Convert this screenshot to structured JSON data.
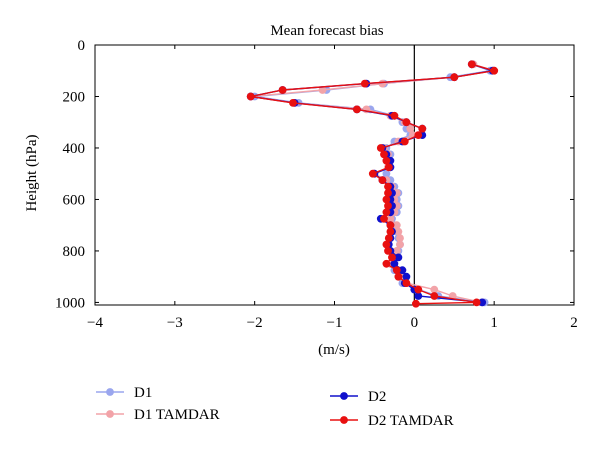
{
  "chart_data": {
    "type": "line",
    "title": "Mean forecast bias",
    "xlabel": "(m/s)",
    "ylabel": "Height (hPa)",
    "xlim": [
      -4,
      2
    ],
    "ylim": [
      1010,
      0
    ],
    "y_inverted": true,
    "xticks": [
      -4,
      -3,
      -2,
      -1,
      0,
      1,
      2
    ],
    "yticks": [
      0,
      200,
      400,
      600,
      800,
      1000
    ],
    "grid": false,
    "zero_line": 0,
    "legend_placement": "bottom",
    "series": [
      {
        "name": "D1",
        "color": "#9aa6ee",
        "points": [
          [
            0.72,
            75
          ],
          [
            0.95,
            100
          ],
          [
            0.45,
            125
          ],
          [
            -0.38,
            150
          ],
          [
            -1.1,
            175
          ],
          [
            -2.0,
            200
          ],
          [
            -1.45,
            225
          ],
          [
            -0.55,
            250
          ],
          [
            -0.25,
            275
          ],
          [
            -0.15,
            300
          ],
          [
            -0.1,
            325
          ],
          [
            -0.05,
            350
          ],
          [
            -0.25,
            375
          ],
          [
            -0.35,
            400
          ],
          [
            -0.3,
            425
          ],
          [
            -0.32,
            450
          ],
          [
            -0.3,
            475
          ],
          [
            -0.35,
            500
          ],
          [
            -0.3,
            525
          ],
          [
            -0.25,
            550
          ],
          [
            -0.2,
            575
          ],
          [
            -0.22,
            600
          ],
          [
            -0.2,
            625
          ],
          [
            -0.22,
            650
          ],
          [
            -0.28,
            675
          ],
          [
            -0.25,
            700
          ],
          [
            -0.22,
            725
          ],
          [
            -0.2,
            750
          ],
          [
            -0.18,
            775
          ],
          [
            -0.2,
            800
          ],
          [
            -0.25,
            825
          ],
          [
            -0.3,
            850
          ],
          [
            -0.25,
            875
          ],
          [
            -0.2,
            900
          ],
          [
            -0.15,
            925
          ],
          [
            0.05,
            950
          ],
          [
            0.3,
            975
          ],
          [
            0.88,
            1000
          ]
        ]
      },
      {
        "name": "D1 TAMDAR",
        "color": "#f2a3a8",
        "points": [
          [
            0.74,
            75
          ],
          [
            1.0,
            100
          ],
          [
            0.5,
            125
          ],
          [
            -0.4,
            150
          ],
          [
            -1.15,
            175
          ],
          [
            -2.05,
            200
          ],
          [
            -1.5,
            225
          ],
          [
            -0.6,
            250
          ],
          [
            -0.3,
            275
          ],
          [
            -0.12,
            300
          ],
          [
            -0.05,
            325
          ],
          [
            -0.02,
            350
          ],
          [
            -0.2,
            375
          ],
          [
            -0.38,
            400
          ],
          [
            -0.33,
            425
          ],
          [
            -0.35,
            450
          ],
          [
            -0.33,
            475
          ],
          [
            -0.5,
            500
          ],
          [
            -0.35,
            525
          ],
          [
            -0.28,
            550
          ],
          [
            -0.22,
            575
          ],
          [
            -0.25,
            600
          ],
          [
            -0.22,
            625
          ],
          [
            -0.25,
            650
          ],
          [
            -0.3,
            675
          ],
          [
            -0.22,
            700
          ],
          [
            -0.2,
            725
          ],
          [
            -0.18,
            750
          ],
          [
            -0.18,
            775
          ],
          [
            -0.22,
            800
          ],
          [
            -0.28,
            825
          ],
          [
            -0.3,
            850
          ],
          [
            -0.2,
            875
          ],
          [
            -0.15,
            900
          ],
          [
            -0.1,
            925
          ],
          [
            0.25,
            950
          ],
          [
            0.48,
            975
          ],
          [
            0.85,
            1000
          ]
        ]
      },
      {
        "name": "D2",
        "color": "#1010cc",
        "points": [
          [
            0.72,
            75
          ],
          [
            0.98,
            100
          ],
          [
            0.5,
            125
          ],
          [
            -0.6,
            150
          ],
          [
            -1.65,
            175
          ],
          [
            -2.05,
            200
          ],
          [
            -1.5,
            225
          ],
          [
            -0.72,
            250
          ],
          [
            -0.28,
            275
          ],
          [
            -0.1,
            300
          ],
          [
            0.1,
            325
          ],
          [
            0.1,
            350
          ],
          [
            -0.15,
            375
          ],
          [
            -0.4,
            400
          ],
          [
            -0.35,
            425
          ],
          [
            -0.3,
            450
          ],
          [
            -0.3,
            475
          ],
          [
            -0.5,
            500
          ],
          [
            -0.4,
            525
          ],
          [
            -0.3,
            550
          ],
          [
            -0.28,
            575
          ],
          [
            -0.3,
            600
          ],
          [
            -0.28,
            625
          ],
          [
            -0.3,
            650
          ],
          [
            -0.42,
            675
          ],
          [
            -0.3,
            700
          ],
          [
            -0.28,
            725
          ],
          [
            -0.3,
            750
          ],
          [
            -0.32,
            775
          ],
          [
            -0.3,
            800
          ],
          [
            -0.2,
            825
          ],
          [
            -0.25,
            850
          ],
          [
            -0.15,
            875
          ],
          [
            -0.1,
            900
          ],
          [
            -0.12,
            925
          ],
          [
            0.0,
            950
          ],
          [
            0.05,
            975
          ],
          [
            0.85,
            1000
          ]
        ]
      },
      {
        "name": "D2 TAMDAR",
        "color": "#e81010",
        "points": [
          [
            0.72,
            75
          ],
          [
            1.0,
            100
          ],
          [
            0.5,
            125
          ],
          [
            -0.62,
            150
          ],
          [
            -1.65,
            175
          ],
          [
            -2.05,
            200
          ],
          [
            -1.52,
            225
          ],
          [
            -0.72,
            250
          ],
          [
            -0.25,
            275
          ],
          [
            -0.1,
            300
          ],
          [
            0.1,
            325
          ],
          [
            0.05,
            350
          ],
          [
            -0.12,
            375
          ],
          [
            -0.42,
            400
          ],
          [
            -0.38,
            425
          ],
          [
            -0.35,
            450
          ],
          [
            -0.32,
            475
          ],
          [
            -0.52,
            500
          ],
          [
            -0.4,
            525
          ],
          [
            -0.33,
            550
          ],
          [
            -0.33,
            575
          ],
          [
            -0.35,
            600
          ],
          [
            -0.33,
            625
          ],
          [
            -0.35,
            650
          ],
          [
            -0.38,
            675
          ],
          [
            -0.3,
            700
          ],
          [
            -0.3,
            725
          ],
          [
            -0.32,
            750
          ],
          [
            -0.35,
            775
          ],
          [
            -0.33,
            800
          ],
          [
            -0.28,
            825
          ],
          [
            -0.35,
            850
          ],
          [
            -0.22,
            875
          ],
          [
            -0.2,
            900
          ],
          [
            -0.1,
            925
          ],
          [
            0.05,
            950
          ],
          [
            0.25,
            975
          ],
          [
            0.78,
            1000
          ],
          [
            0.02,
            1005
          ]
        ]
      }
    ]
  }
}
